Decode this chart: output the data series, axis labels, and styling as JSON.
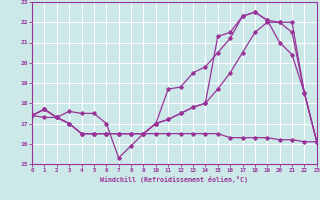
{
  "xlabel": "Windchill (Refroidissement éolien,°C)",
  "xlim": [
    0,
    23
  ],
  "ylim": [
    15,
    23
  ],
  "yticks": [
    15,
    16,
    17,
    18,
    19,
    20,
    21,
    22,
    23
  ],
  "xticks": [
    0,
    1,
    2,
    3,
    4,
    5,
    6,
    7,
    8,
    9,
    10,
    11,
    12,
    13,
    14,
    15,
    16,
    17,
    18,
    19,
    20,
    21,
    22,
    23
  ],
  "bg_color": "#cce8e8",
  "grid_color": "#ffffff",
  "line_color": "#993399",
  "curve_A_x": [
    0,
    1,
    2,
    3,
    4,
    5,
    6,
    7,
    8,
    9,
    10,
    11,
    12,
    13,
    14,
    15,
    16,
    17,
    18,
    19,
    20,
    21,
    22,
    23
  ],
  "curve_A_y": [
    17.4,
    17.7,
    17.3,
    17.6,
    17.5,
    17.5,
    17.0,
    15.3,
    15.9,
    16.5,
    17.0,
    18.7,
    18.8,
    19.5,
    19.8,
    20.5,
    21.2,
    22.3,
    22.5,
    22.1,
    21.0,
    20.4,
    18.5,
    16.1
  ],
  "curve_B_x": [
    0,
    1,
    2,
    3,
    4,
    5,
    6,
    7,
    8,
    9,
    10,
    11,
    12,
    13,
    14,
    15,
    16,
    17,
    18,
    19,
    20,
    21,
    22,
    23
  ],
  "curve_B_y": [
    17.4,
    17.7,
    17.3,
    17.0,
    16.5,
    16.5,
    16.5,
    16.5,
    16.5,
    16.5,
    17.0,
    17.2,
    17.5,
    17.8,
    18.0,
    21.3,
    21.5,
    22.3,
    22.5,
    22.1,
    22.0,
    22.0,
    18.5,
    16.1
  ],
  "curve_C_x": [
    0,
    1,
    2,
    3,
    4,
    5,
    6,
    7,
    8,
    9,
    10,
    11,
    12,
    13,
    14,
    15,
    16,
    17,
    18,
    19,
    20,
    21,
    22,
    23
  ],
  "curve_C_y": [
    17.4,
    17.7,
    17.3,
    17.0,
    16.5,
    16.5,
    16.5,
    16.5,
    16.5,
    16.5,
    17.0,
    17.2,
    17.5,
    17.8,
    18.0,
    18.7,
    19.5,
    20.5,
    21.5,
    22.0,
    22.0,
    21.5,
    18.5,
    16.1
  ],
  "curve_D_x": [
    0,
    1,
    2,
    3,
    4,
    5,
    6,
    7,
    8,
    9,
    10,
    11,
    12,
    13,
    14,
    15,
    16,
    17,
    18,
    19,
    20,
    21,
    22,
    23
  ],
  "curve_D_y": [
    17.4,
    17.3,
    17.3,
    17.0,
    16.5,
    16.5,
    16.5,
    16.5,
    16.5,
    16.5,
    16.5,
    16.5,
    16.5,
    16.5,
    16.5,
    16.5,
    16.3,
    16.3,
    16.3,
    16.3,
    16.2,
    16.2,
    16.1,
    16.1
  ]
}
